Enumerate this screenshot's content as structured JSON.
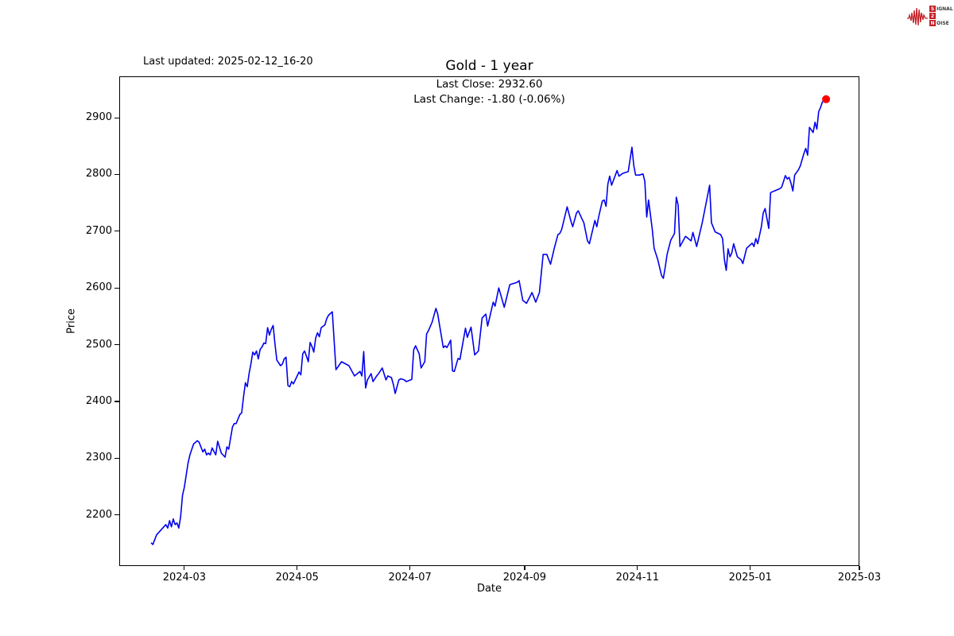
{
  "header": {
    "last_updated": "Last updated: 2025-02-12_16-20"
  },
  "logo": {
    "signal_initial": "S",
    "signal_rest": "IGNAL",
    "digit": "2",
    "noise_initial": "N",
    "noise_rest": "OISE",
    "accent_color": "#c32127"
  },
  "chart_data": {
    "type": "line",
    "title": "Gold - 1 year",
    "annotation_line1": "Last Close: 2932.60",
    "annotation_line2": "Last Change: -1.80 (-0.06%)",
    "last_close": 2932.6,
    "last_change": "-1.80 (-0.06%)",
    "xlabel": "Date",
    "ylabel": "Price",
    "line_color": "#0000ee",
    "last_point_color": "#ff0000",
    "grid": false,
    "legend": "none",
    "x_unit": "days since 2024-02-12",
    "x_start_date": "2024-02-12",
    "x_end_date": "2025-02-12",
    "xlim_days": [
      -17.2,
      383
    ],
    "ylim": [
      2110,
      2973
    ],
    "y_ticks": [
      2200,
      2300,
      2400,
      2500,
      2600,
      2700,
      2800,
      2900
    ],
    "x_ticks": [
      {
        "day": 18,
        "label": "2024-03"
      },
      {
        "day": 79,
        "label": "2024-05"
      },
      {
        "day": 140,
        "label": "2024-07"
      },
      {
        "day": 202,
        "label": "2024-09"
      },
      {
        "day": 263,
        "label": "2024-11"
      },
      {
        "day": 324,
        "label": "2025-01"
      },
      {
        "day": 383,
        "label": "2025-03"
      }
    ],
    "series": [
      {
        "name": "Gold",
        "points": [
          [
            0,
            2151
          ],
          [
            1,
            2148
          ],
          [
            3,
            2165
          ],
          [
            5,
            2172
          ],
          [
            6,
            2176
          ],
          [
            8,
            2183
          ],
          [
            9,
            2177
          ],
          [
            10,
            2190
          ],
          [
            11,
            2179
          ],
          [
            12,
            2193
          ],
          [
            13,
            2183
          ],
          [
            14,
            2186
          ],
          [
            15,
            2177
          ],
          [
            16,
            2197
          ],
          [
            17,
            2235
          ],
          [
            18,
            2249
          ],
          [
            19,
            2270
          ],
          [
            20,
            2291
          ],
          [
            21,
            2306
          ],
          [
            23,
            2325
          ],
          [
            25,
            2331
          ],
          [
            26,
            2328
          ],
          [
            28,
            2311
          ],
          [
            29,
            2316
          ],
          [
            30,
            2306
          ],
          [
            31,
            2309
          ],
          [
            32,
            2306
          ],
          [
            33,
            2318
          ],
          [
            35,
            2306
          ],
          [
            36,
            2330
          ],
          [
            38,
            2309
          ],
          [
            40,
            2302
          ],
          [
            41,
            2320
          ],
          [
            42,
            2316
          ],
          [
            44,
            2355
          ],
          [
            45,
            2361
          ],
          [
            46,
            2361
          ],
          [
            48,
            2377
          ],
          [
            49,
            2380
          ],
          [
            50,
            2408
          ],
          [
            51,
            2433
          ],
          [
            52,
            2426
          ],
          [
            53,
            2449
          ],
          [
            54,
            2466
          ],
          [
            55,
            2487
          ],
          [
            56,
            2482
          ],
          [
            57,
            2489
          ],
          [
            58,
            2475
          ],
          [
            59,
            2492
          ],
          [
            60,
            2496
          ],
          [
            61,
            2503
          ],
          [
            62,
            2502
          ],
          [
            63,
            2530
          ],
          [
            64,
            2517
          ],
          [
            65,
            2527
          ],
          [
            66,
            2534
          ],
          [
            67,
            2501
          ],
          [
            68,
            2473
          ],
          [
            70,
            2463
          ],
          [
            71,
            2466
          ],
          [
            72,
            2475
          ],
          [
            73,
            2478
          ],
          [
            74,
            2428
          ],
          [
            75,
            2426
          ],
          [
            76,
            2435
          ],
          [
            77,
            2431
          ],
          [
            79,
            2445
          ],
          [
            80,
            2452
          ],
          [
            81,
            2447
          ],
          [
            82,
            2484
          ],
          [
            83,
            2489
          ],
          [
            84,
            2480
          ],
          [
            85,
            2470
          ],
          [
            86,
            2504
          ],
          [
            87,
            2497
          ],
          [
            88,
            2487
          ],
          [
            89,
            2512
          ],
          [
            90,
            2521
          ],
          [
            91,
            2514
          ],
          [
            92,
            2530
          ],
          [
            94,
            2535
          ],
          [
            95,
            2546
          ],
          [
            96,
            2552
          ],
          [
            98,
            2558
          ],
          [
            100,
            2456
          ],
          [
            103,
            2470
          ],
          [
            107,
            2463
          ],
          [
            110,
            2445
          ],
          [
            113,
            2453
          ],
          [
            114,
            2445
          ],
          [
            115,
            2488
          ],
          [
            116,
            2424
          ],
          [
            117,
            2438
          ],
          [
            119,
            2449
          ],
          [
            120,
            2435
          ],
          [
            122,
            2445
          ],
          [
            123,
            2449
          ],
          [
            125,
            2459
          ],
          [
            127,
            2438
          ],
          [
            128,
            2445
          ],
          [
            130,
            2442
          ],
          [
            131,
            2430
          ],
          [
            132,
            2414
          ],
          [
            134,
            2438
          ],
          [
            135,
            2440
          ],
          [
            137,
            2438
          ],
          [
            138,
            2435
          ],
          [
            141,
            2439
          ],
          [
            142,
            2491
          ],
          [
            143,
            2498
          ],
          [
            145,
            2484
          ],
          [
            146,
            2459
          ],
          [
            148,
            2470
          ],
          [
            149,
            2519
          ],
          [
            150,
            2525
          ],
          [
            152,
            2540
          ],
          [
            154,
            2564
          ],
          [
            155,
            2554
          ],
          [
            158,
            2495
          ],
          [
            159,
            2498
          ],
          [
            160,
            2495
          ],
          [
            162,
            2508
          ],
          [
            163,
            2454
          ],
          [
            164,
            2453
          ],
          [
            166,
            2476
          ],
          [
            167,
            2474
          ],
          [
            170,
            2529
          ],
          [
            171,
            2513
          ],
          [
            173,
            2531
          ],
          [
            175,
            2482
          ],
          [
            177,
            2489
          ],
          [
            179,
            2547
          ],
          [
            181,
            2554
          ],
          [
            182,
            2533
          ],
          [
            185,
            2575
          ],
          [
            186,
            2568
          ],
          [
            188,
            2600
          ],
          [
            191,
            2566
          ],
          [
            194,
            2606
          ],
          [
            198,
            2610
          ],
          [
            199,
            2613
          ],
          [
            201,
            2578
          ],
          [
            203,
            2573
          ],
          [
            206,
            2592
          ],
          [
            208,
            2575
          ],
          [
            210,
            2592
          ],
          [
            212,
            2659
          ],
          [
            214,
            2659
          ],
          [
            216,
            2642
          ],
          [
            218,
            2670
          ],
          [
            220,
            2694
          ],
          [
            221,
            2696
          ],
          [
            222,
            2703
          ],
          [
            225,
            2743
          ],
          [
            227,
            2718
          ],
          [
            228,
            2708
          ],
          [
            230,
            2732
          ],
          [
            231,
            2736
          ],
          [
            233,
            2722
          ],
          [
            234,
            2715
          ],
          [
            236,
            2683
          ],
          [
            237,
            2678
          ],
          [
            240,
            2719
          ],
          [
            241,
            2708
          ],
          [
            242,
            2725
          ],
          [
            244,
            2753
          ],
          [
            245,
            2755
          ],
          [
            246,
            2744
          ],
          [
            247,
            2783
          ],
          [
            248,
            2797
          ],
          [
            249,
            2781
          ],
          [
            252,
            2807
          ],
          [
            253,
            2797
          ],
          [
            255,
            2802
          ],
          [
            258,
            2805
          ],
          [
            260,
            2848
          ],
          [
            261,
            2816
          ],
          [
            262,
            2799
          ],
          [
            264,
            2799
          ],
          [
            266,
            2801
          ],
          [
            267,
            2788
          ],
          [
            268,
            2725
          ],
          [
            269,
            2755
          ],
          [
            271,
            2703
          ],
          [
            272,
            2670
          ],
          [
            274,
            2650
          ],
          [
            276,
            2622
          ],
          [
            277,
            2617
          ],
          [
            278,
            2636
          ],
          [
            279,
            2659
          ],
          [
            281,
            2684
          ],
          [
            283,
            2696
          ],
          [
            284,
            2760
          ],
          [
            285,
            2746
          ],
          [
            286,
            2673
          ],
          [
            289,
            2691
          ],
          [
            292,
            2683
          ],
          [
            293,
            2698
          ],
          [
            295,
            2673
          ],
          [
            298,
            2715
          ],
          [
            302,
            2781
          ],
          [
            303,
            2715
          ],
          [
            305,
            2699
          ],
          [
            308,
            2694
          ],
          [
            309,
            2687
          ],
          [
            310,
            2650
          ],
          [
            311,
            2631
          ],
          [
            312,
            2669
          ],
          [
            313,
            2655
          ],
          [
            314,
            2662
          ],
          [
            315,
            2678
          ],
          [
            317,
            2655
          ],
          [
            319,
            2650
          ],
          [
            320,
            2643
          ],
          [
            322,
            2670
          ],
          [
            325,
            2679
          ],
          [
            326,
            2673
          ],
          [
            327,
            2687
          ],
          [
            328,
            2678
          ],
          [
            330,
            2708
          ],
          [
            331,
            2732
          ],
          [
            332,
            2740
          ],
          [
            334,
            2705
          ],
          [
            335,
            2768
          ],
          [
            337,
            2771
          ],
          [
            340,
            2775
          ],
          [
            341,
            2778
          ],
          [
            343,
            2798
          ],
          [
            344,
            2792
          ],
          [
            345,
            2795
          ],
          [
            346,
            2785
          ],
          [
            347,
            2771
          ],
          [
            348,
            2799
          ],
          [
            350,
            2808
          ],
          [
            351,
            2815
          ],
          [
            353,
            2837
          ],
          [
            354,
            2846
          ],
          [
            355,
            2834
          ],
          [
            356,
            2883
          ],
          [
            358,
            2874
          ],
          [
            359,
            2892
          ],
          [
            360,
            2880
          ],
          [
            361,
            2911
          ],
          [
            362,
            2918
          ],
          [
            363,
            2928
          ],
          [
            365,
            2932.6
          ]
        ]
      }
    ]
  }
}
